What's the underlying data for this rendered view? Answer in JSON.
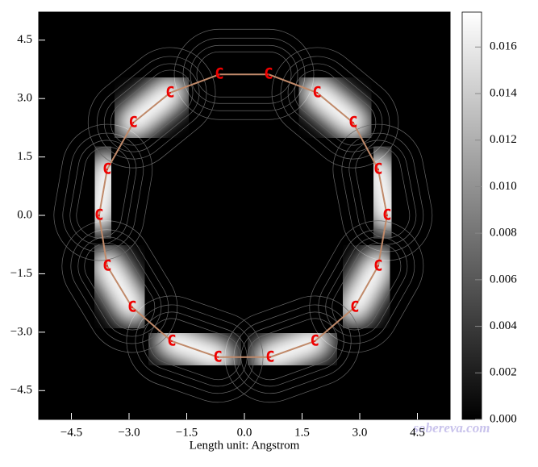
{
  "chart_data": {
    "type": "contour_map",
    "xlabel": "Length unit: Angstrom",
    "watermark": "sobereva.com",
    "xlim": [
      -5.35,
      5.35
    ],
    "ylim": [
      -5.24,
      5.22
    ],
    "xticks": [
      {
        "value": -4.5,
        "label": "−4.5"
      },
      {
        "value": -3.0,
        "label": "−3.0"
      },
      {
        "value": -1.5,
        "label": "−1.5"
      },
      {
        "value": 0,
        "label": "0.0"
      },
      1.5,
      {
        "value": 3.0,
        "label": "3.0"
      },
      4.5
    ],
    "yticks": [
      {
        "value": -4.5,
        "label": "−4.5"
      },
      {
        "value": -3.0,
        "label": "−3.0"
      },
      {
        "value": -1.5,
        "label": "−1.5"
      },
      {
        "value": 0,
        "label": "0.0"
      },
      1.5,
      {
        "value": 3.0,
        "label": "3.0"
      },
      4.5
    ],
    "atoms": {
      "labels": [
        "C",
        "C",
        "C",
        "C",
        "C",
        "C",
        "C",
        "C",
        "C",
        "C",
        "C",
        "C",
        "C",
        "C",
        "C",
        "C",
        "C",
        "C"
      ],
      "x": [
        -0.65,
        0.63,
        1.89,
        2.83,
        3.48,
        3.71,
        3.48,
        2.87,
        1.83,
        0.67,
        -0.69,
        -1.89,
        -2.92,
        -3.57,
        -3.78,
        -3.57,
        -2.89,
        -1.93
      ],
      "y": [
        3.62,
        3.62,
        3.15,
        2.38,
        1.18,
        0,
        -1.3,
        -2.36,
        -3.23,
        -3.64,
        -3.64,
        -3.23,
        -2.36,
        -1.3,
        0,
        1.18,
        2.38,
        3.15
      ]
    },
    "atom_color": "#ee0000",
    "bond_color": "#c08a6a",
    "colorbar": {
      "lim": [
        0,
        0.0175
      ],
      "ticks": [
        {
          "value": 0,
          "label": "0.000"
        },
        {
          "value": 0.002,
          "label": "0.002"
        },
        {
          "value": 0.004,
          "label": "0.004"
        },
        {
          "value": 0.006,
          "label": "0.006"
        },
        {
          "value": 0.008,
          "label": "0.008"
        },
        {
          "value": 0.01,
          "label": "0.010"
        },
        {
          "value": 0.012,
          "label": "0.012"
        },
        {
          "value": 0.014,
          "label": "0.014"
        },
        {
          "value": 0.016,
          "label": "0.016"
        }
      ]
    }
  }
}
